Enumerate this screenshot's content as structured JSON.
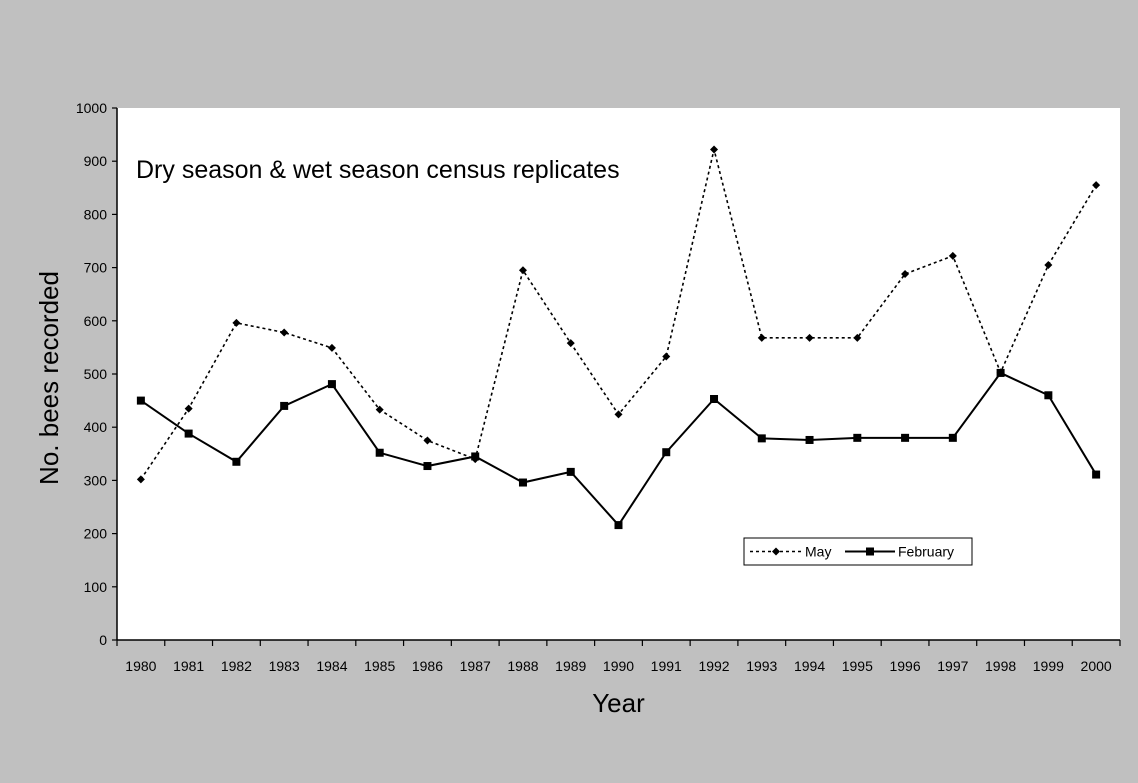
{
  "chart_data": {
    "type": "line",
    "title": "Dry season & wet season census replicates",
    "xlabel": "Year",
    "ylabel": "No. bees recorded",
    "ylim": [
      0,
      1000
    ],
    "y_ticks": [
      "0",
      "100",
      "200",
      "300",
      "400",
      "500",
      "600",
      "700",
      "800",
      "900",
      "1000"
    ],
    "categories": [
      "1980",
      "1981",
      "1982",
      "1983",
      "1984",
      "1985",
      "1986",
      "1987",
      "1988",
      "1989",
      "1990",
      "1991",
      "1992",
      "1993",
      "1994",
      "1995",
      "1996",
      "1997",
      "1998",
      "1999",
      "2000"
    ],
    "grid": false,
    "legend_position": "lower-right",
    "series": [
      {
        "name": "May",
        "style": "dotted",
        "marker": "diamond",
        "values": [
          302,
          435,
          596,
          578,
          549,
          433,
          375,
          340,
          695,
          558,
          424,
          533,
          922,
          568,
          568,
          568,
          688,
          722,
          503,
          705,
          855
        ]
      },
      {
        "name": "February",
        "style": "solid",
        "marker": "square",
        "values": [
          450,
          388,
          335,
          440,
          481,
          352,
          327,
          345,
          296,
          316,
          216,
          353,
          453,
          379,
          376,
          380,
          380,
          380,
          502,
          460,
          311
        ]
      }
    ],
    "colors": {
      "page_bg": "#c0c0c0",
      "plot_bg": "#ffffff",
      "ink": "#000000"
    }
  }
}
